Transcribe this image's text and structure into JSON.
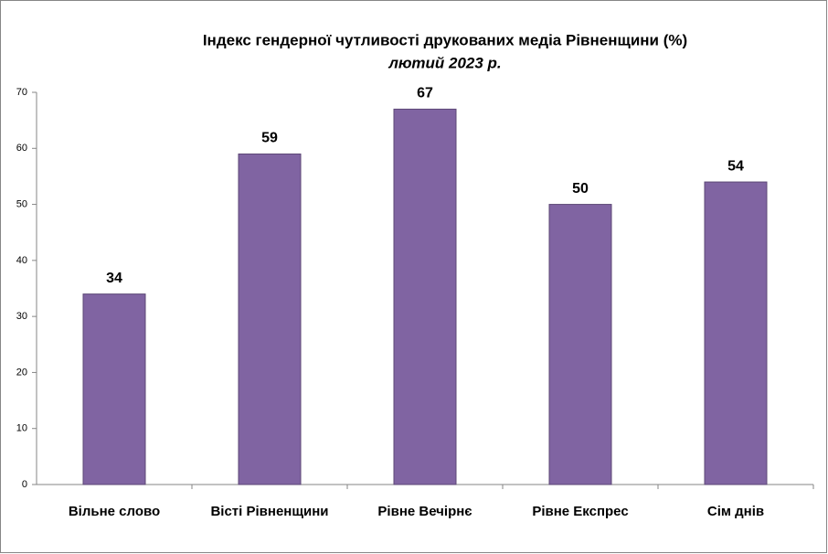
{
  "chart_data": {
    "type": "bar",
    "title": "Індекс гендерної чутливості друкованих медіа Рівненщини (%)",
    "subtitle": "лютий 2023 р.",
    "categories": [
      "Вільне слово",
      "Вісті Рівненщини",
      "Рівне Вечірнє",
      "Рівне Експрес",
      "Сім днів"
    ],
    "values": [
      34,
      59,
      67,
      50,
      54
    ],
    "color": "#8064a2",
    "ylim": [
      0,
      70
    ],
    "yticks": [
      0,
      10,
      20,
      30,
      40,
      50,
      60,
      70
    ],
    "grid": false
  }
}
